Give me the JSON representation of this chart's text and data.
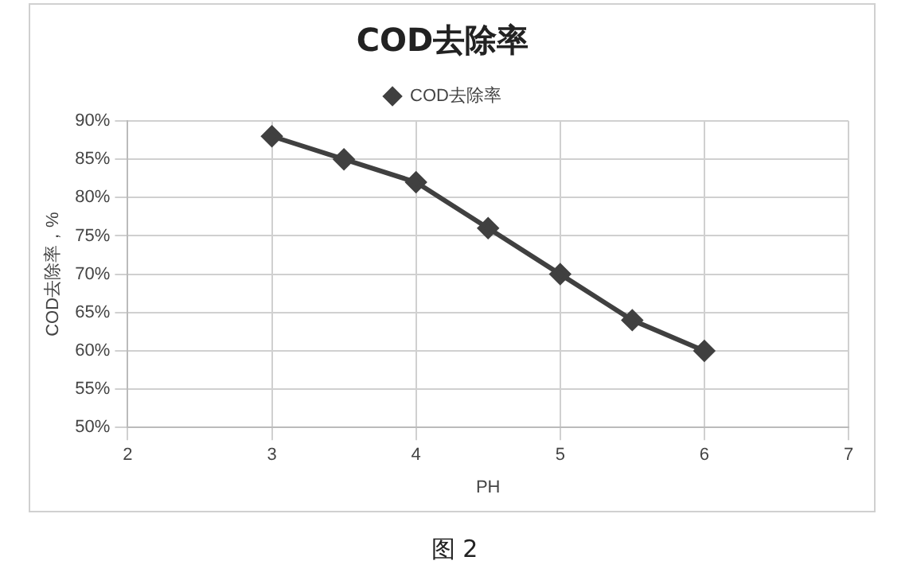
{
  "chart_data": {
    "type": "line",
    "title": "COD去除率",
    "xlabel": "PH",
    "ylabel": "COD去除率，%",
    "x": [
      3,
      3.5,
      4,
      4.5,
      5,
      5.5,
      6
    ],
    "series": [
      {
        "name": "COD去除率",
        "color": "#404040",
        "values": [
          88,
          85,
          82,
          76,
          70,
          64,
          60
        ]
      }
    ],
    "xlim": [
      2,
      7
    ],
    "xticks": [
      2,
      3,
      4,
      5,
      6,
      7
    ],
    "ylim": [
      50,
      90
    ],
    "yticks": [
      {
        "value": 50,
        "label": "50%"
      },
      {
        "value": 55,
        "label": "55%"
      },
      {
        "value": 60,
        "label": "60%"
      },
      {
        "value": 65,
        "label": "65%"
      },
      {
        "value": 70,
        "label": "70%"
      },
      {
        "value": 75,
        "label": "75%"
      },
      {
        "value": 80,
        "label": "80%"
      },
      {
        "value": 85,
        "label": "85%"
      },
      {
        "value": 90,
        "label": "90%"
      }
    ],
    "grid": true,
    "legend": "top",
    "marker": "diamond",
    "line_style": "solid",
    "annotations": [
      "图 2"
    ]
  }
}
